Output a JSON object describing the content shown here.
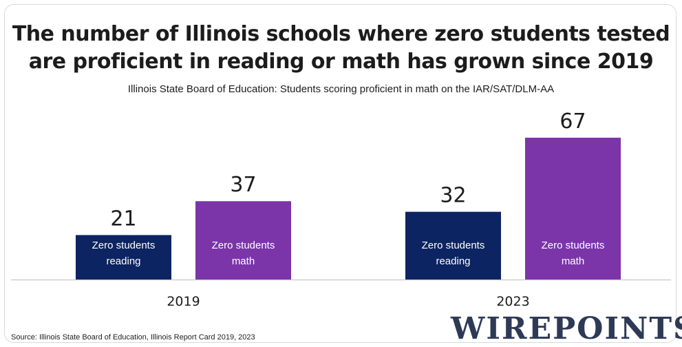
{
  "title_line1": "The number of Illinois schools where zero students tested",
  "title_line2": "are proficient in reading or math has grown since 2019",
  "subtitle": "Illinois State Board of Education: Students scoring proficient in math on the IAR/SAT/DLM-AA",
  "source": "Source: Illinois State Board of Education, Illinois Report Card 2019, 2023",
  "logo_text": "WIREPOINTS",
  "colors": {
    "reading": "#0d2462",
    "math": "#7b35a8",
    "axis": "#cfcfcf",
    "text": "#1c1c1c"
  },
  "chart_data": {
    "type": "bar",
    "categories": [
      "2019",
      "2023"
    ],
    "series": [
      {
        "name": "Zero students reading",
        "label_lines": [
          "Zero students",
          "reading"
        ],
        "values": [
          21,
          32
        ]
      },
      {
        "name": "Zero students math",
        "label_lines": [
          "Zero students",
          "math"
        ],
        "values": [
          37,
          67
        ]
      }
    ],
    "ylim": [
      0,
      67
    ],
    "grid": false,
    "legend": "none"
  }
}
